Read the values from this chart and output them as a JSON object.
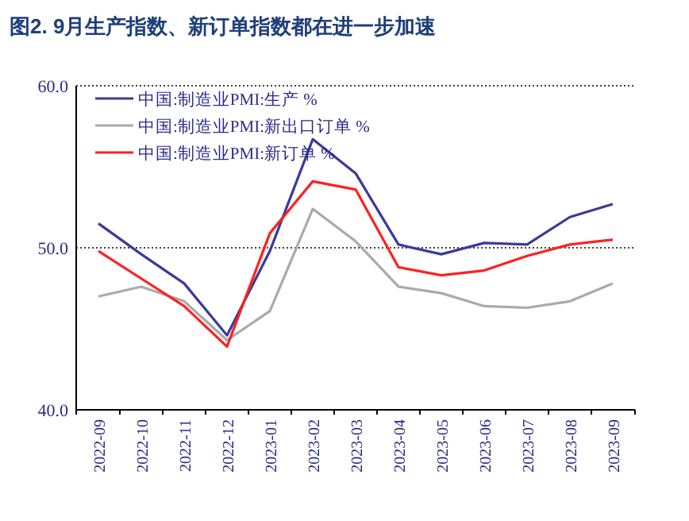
{
  "chart_data": {
    "type": "line",
    "title": "图2. 9月生产指数、新订单指数都在进一步加速",
    "categories": [
      "2022-09",
      "2022-10",
      "2022-11",
      "2022-12",
      "2023-01",
      "2023-02",
      "2023-03",
      "2023-04",
      "2023-05",
      "2023-06",
      "2023-07",
      "2023-08",
      "2023-09"
    ],
    "series": [
      {
        "name": "中国:制造业PMI:生产 %",
        "color": "#3a3a9a",
        "values": [
          51.5,
          49.6,
          47.8,
          44.6,
          49.8,
          56.7,
          54.6,
          50.2,
          49.6,
          50.3,
          50.2,
          51.9,
          52.7
        ]
      },
      {
        "name": "中国:制造业PMI:新出口订单 %",
        "color": "#aaaaaa",
        "values": [
          47.0,
          47.6,
          46.7,
          44.3,
          46.1,
          52.4,
          50.4,
          47.6,
          47.2,
          46.4,
          46.3,
          46.7,
          47.8
        ]
      },
      {
        "name": "中国:制造业PMI:新订单 %",
        "color": "#ff2020",
        "values": [
          49.8,
          48.1,
          46.4,
          43.9,
          50.9,
          54.1,
          53.6,
          48.8,
          48.3,
          48.6,
          49.5,
          50.2,
          50.5
        ]
      }
    ],
    "ylim": [
      40,
      60
    ],
    "yticks": [
      {
        "value": 40,
        "label": "40.0"
      },
      {
        "value": 50,
        "label": "50.0"
      },
      {
        "value": 60,
        "label": "60.0"
      }
    ],
    "grid": "y",
    "legend": "top left",
    "line_style": "solid",
    "marker": "none"
  }
}
